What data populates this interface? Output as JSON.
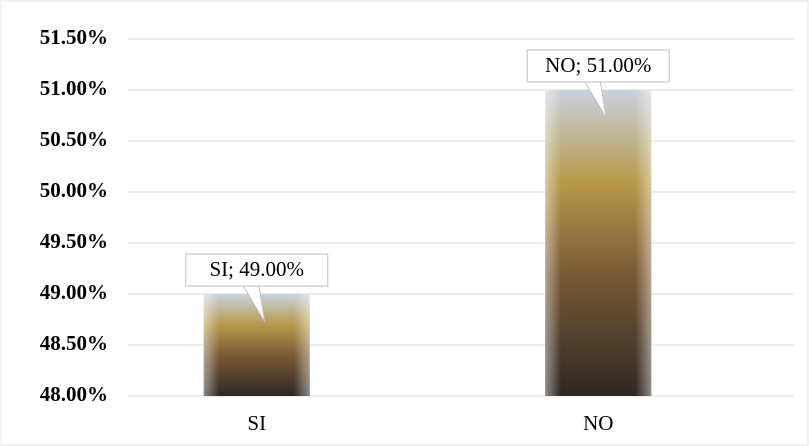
{
  "chart_data": {
    "type": "bar",
    "categories": [
      "SI",
      "NO"
    ],
    "values": [
      49,
      51
    ],
    "value_labels": [
      "SI; 49.00%",
      "NO; 51.00%"
    ],
    "ylim": [
      48,
      51.5
    ],
    "yticks": [
      {
        "value": 48,
        "label": "48.00%"
      },
      {
        "value": 48.5,
        "label": "48.50%"
      },
      {
        "value": 49,
        "label": "49.00%"
      },
      {
        "value": 49.5,
        "label": "49.50%"
      },
      {
        "value": 50,
        "label": "50.00%"
      },
      {
        "value": 50.5,
        "label": "50.50%"
      },
      {
        "value": 51,
        "label": "51.00%"
      },
      {
        "value": 51.5,
        "label": "51.50%"
      }
    ],
    "grid": true
  }
}
